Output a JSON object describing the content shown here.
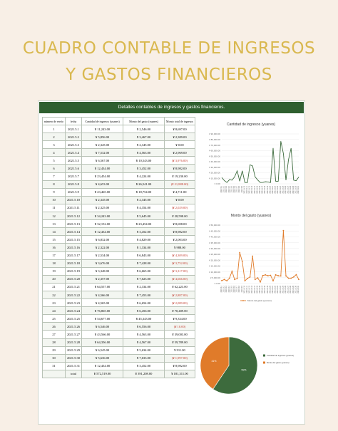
{
  "title_line1": "CUADRO CONTABLE DE INGRESOS",
  "title_line2": "Y GASTOS FINANCIEROS",
  "sheet_header": "Detalles contables de ingresos y gastos financieros.",
  "table": {
    "headers": [
      "número de envío",
      "fecha",
      "Cantidad de ingresos (yuanes)",
      "Monto del gasto (yuanes)",
      "Monto total de ingresos"
    ],
    "rows": [
      [
        "1",
        "2021.5.1",
        "¥ 11,243.00",
        "¥ 2,546.00",
        "¥ 8,697.00"
      ],
      [
        "2",
        "2021.5.2",
        "¥ 5,856.00",
        "¥ 3,467.00",
        "¥ 2,389.00"
      ],
      [
        "3",
        "2021.5.3",
        "¥ 2,345.00",
        "¥ 2,345.00",
        "¥ 0.00"
      ],
      [
        "4",
        "2021.5.4",
        "¥ 7,532.00",
        "¥ 4,563.00",
        "¥ 2,969.00"
      ],
      [
        "5",
        "2021.5.5",
        "¥ 6,567.00",
        "¥ 10,543.00",
        "(¥ 3,976.00)"
      ],
      [
        "6",
        "2021.5.6",
        "¥ 12,434.00",
        "¥ 3,452.00",
        "¥ 8,982.00"
      ],
      [
        "7",
        "2021.5.7",
        "¥ 23,454.00",
        "¥ 4,224.00",
        "¥ 19,230.00"
      ],
      [
        "8",
        "2021.5.8",
        "¥ 4,653.00",
        "¥ 26,541.00",
        "(¥ 21,888.00)"
      ],
      [
        "9",
        "2021.5.9",
        "¥ 23,465.00",
        "¥ 18,754.00",
        "¥ 4,711.00"
      ],
      [
        "10",
        "2021.5.10",
        "¥ 2,345.00",
        "¥ 2,345.00",
        "¥ 0.00"
      ],
      [
        "11",
        "2021.5.11",
        "¥ 2,325.00",
        "¥ 4,354.00",
        "(¥ 2,029.00)"
      ],
      [
        "12",
        "2021.5.12",
        "¥ 34,243.00",
        "¥ 5,645.00",
        "¥ 28,598.00"
      ],
      [
        "13",
        "2021.5.13",
        "¥ 32,152.00",
        "¥ 23,454.00",
        "¥ 8,698.00"
      ],
      [
        "14",
        "2021.5.14",
        "¥ 12,434.00",
        "¥ 3,452.00",
        "¥ 8,982.00"
      ],
      [
        "15",
        "2021.5.15",
        "¥ 6,832.00",
        "¥ 4,829.00",
        "¥ 2,003.00"
      ],
      [
        "16",
        "2021.5.16",
        "¥ 2,322.00",
        "¥ 1,334.00",
        "¥ 988.00"
      ],
      [
        "17",
        "2021.5.17",
        "¥ 2,534.00",
        "¥ 6,843.00",
        "(¥ 4,309.00)"
      ],
      [
        "18",
        "2021.5.18",
        "¥ 3,676.00",
        "¥ 7,428.00",
        "(¥ 3,752.00)"
      ],
      [
        "19",
        "2021.5.19",
        "¥ 3,348.00",
        "¥ 6,665.00",
        "(¥ 3,317.00)"
      ],
      [
        "20",
        "2021.5.20",
        "¥ 2,357.00",
        "¥ 7,023.00",
        "(¥ 4,666.00)"
      ],
      [
        "21",
        "2021.5.21",
        "¥ 64,557.00",
        "¥ 2,334.00",
        "¥ 62,223.00"
      ],
      [
        "22",
        "2021.5.22",
        "¥ 4,566.00",
        "¥ 7,453.00",
        "(¥ 2,887.00)"
      ],
      [
        "23",
        "2021.5.23",
        "¥ 4,565.00",
        "¥ 6,654.00",
        "(¥ 2,089.00)"
      ],
      [
        "24",
        "2021.5.24",
        "¥ 76,865.00",
        "¥ 6,456.00",
        "¥ 70,409.00"
      ],
      [
        "25",
        "2021.5.25",
        "¥ 54,677.00",
        "¥ 45,343.00",
        "¥ 9,334.00"
      ],
      [
        "26",
        "2021.5.26",
        "¥ 6,546.00",
        "¥ 6,556.00",
        "(¥ 10.00)"
      ],
      [
        "27",
        "2021.5.27",
        "¥ 43,566.00",
        "¥ 4,563.00",
        "¥ 39,003.00"
      ],
      [
        "28",
        "2021.5.28",
        "¥ 64,356.00",
        "¥ 4,567.00",
        "¥ 59,789.00"
      ],
      [
        "29",
        "2021.5.29",
        "¥ 6,545.00",
        "¥ 5,634.00",
        "¥ 911.00"
      ],
      [
        "30",
        "2021.5.30",
        "¥ 5,636.00",
        "¥ 7,633.00",
        "(¥ 1,997.00)"
      ],
      [
        "31",
        "2021.5.31",
        "¥ 12,434.00",
        "¥ 3,452.00",
        "¥ 8,982.00"
      ],
      [
        "",
        "total",
        "¥ 572,519.00",
        "¥ 391,208.00",
        "¥ 181,311.00"
      ]
    ]
  },
  "chart_data": [
    {
      "type": "line",
      "title": "Cantidad de ingresos (yuanes)",
      "ylim": [
        0,
        90000
      ],
      "yticks": [
        "¥ 90,000.00",
        "¥ 80,000.00",
        "¥ 70,000.00",
        "¥ 60,000.00",
        "¥ 50,000.00",
        "¥ 40,000.00",
        "¥ 30,000.00",
        "¥ 20,000.00",
        "¥ 10,000.00",
        "¥ 0.00"
      ],
      "x": [
        "2021.5.1",
        "2021.5.2",
        "2021.5.3",
        "2021.5.4",
        "2021.5.5",
        "2021.5.6",
        "2021.5.7",
        "2021.5.8",
        "2021.5.9",
        "2021.5.10",
        "2021.5.11",
        "2021.5.12",
        "2021.5.13",
        "2021.5.14",
        "2021.5.15",
        "2021.5.16",
        "2021.5.17",
        "2021.5.18",
        "2021.5.19",
        "2021.5.20",
        "2021.5.21",
        "2021.5.22",
        "2021.5.23",
        "2021.5.24",
        "2021.5.25",
        "2021.5.26",
        "2021.5.27",
        "2021.5.28",
        "2021.5.29",
        "2021.5.30",
        "2021.5.31"
      ],
      "values": [
        11243,
        5856,
        2345,
        7532,
        6567,
        12434,
        23454,
        4653,
        23465,
        2345,
        2325,
        34243,
        32152,
        12434,
        6832,
        2322,
        2534,
        3676,
        3348,
        2357,
        64557,
        4566,
        4565,
        76865,
        54677,
        6546,
        43566,
        64356,
        6545,
        5636,
        12434
      ],
      "color": "#3d6b3d"
    },
    {
      "type": "line",
      "title": "Monto del gasto (yuanes)",
      "ylim": [
        0,
        50000
      ],
      "yticks": [
        "¥ 50,000.00",
        "¥ 45,000.00",
        "¥ 40,000.00",
        "¥ 35,000.00",
        "¥ 30,000.00",
        "¥ 25,000.00",
        "¥ 20,000.00",
        "¥ 15,000.00",
        "¥ 10,000.00",
        "¥ 5,000.00",
        "¥ 0.00"
      ],
      "values": [
        2546,
        3467,
        2345,
        4563,
        10543,
        3452,
        4224,
        26541,
        18754,
        2345,
        4354,
        5645,
        23454,
        3452,
        4829,
        1334,
        6843,
        7428,
        6665,
        7023,
        2334,
        7453,
        6654,
        6456,
        45343,
        6556,
        4563,
        4567,
        5634,
        7633,
        3452
      ],
      "legend": "Monto del gasto (yuanes)",
      "color": "#e07b2a"
    },
    {
      "type": "pie",
      "labels": [
        "Cantidad de ingresos (yuanes)",
        "Monto del gasto (yuanes)"
      ],
      "values": [
        572519,
        391208
      ],
      "percent_labels": [
        "59%",
        "41%"
      ],
      "colors": [
        "#3d6b3d",
        "#e07b2a"
      ]
    }
  ]
}
